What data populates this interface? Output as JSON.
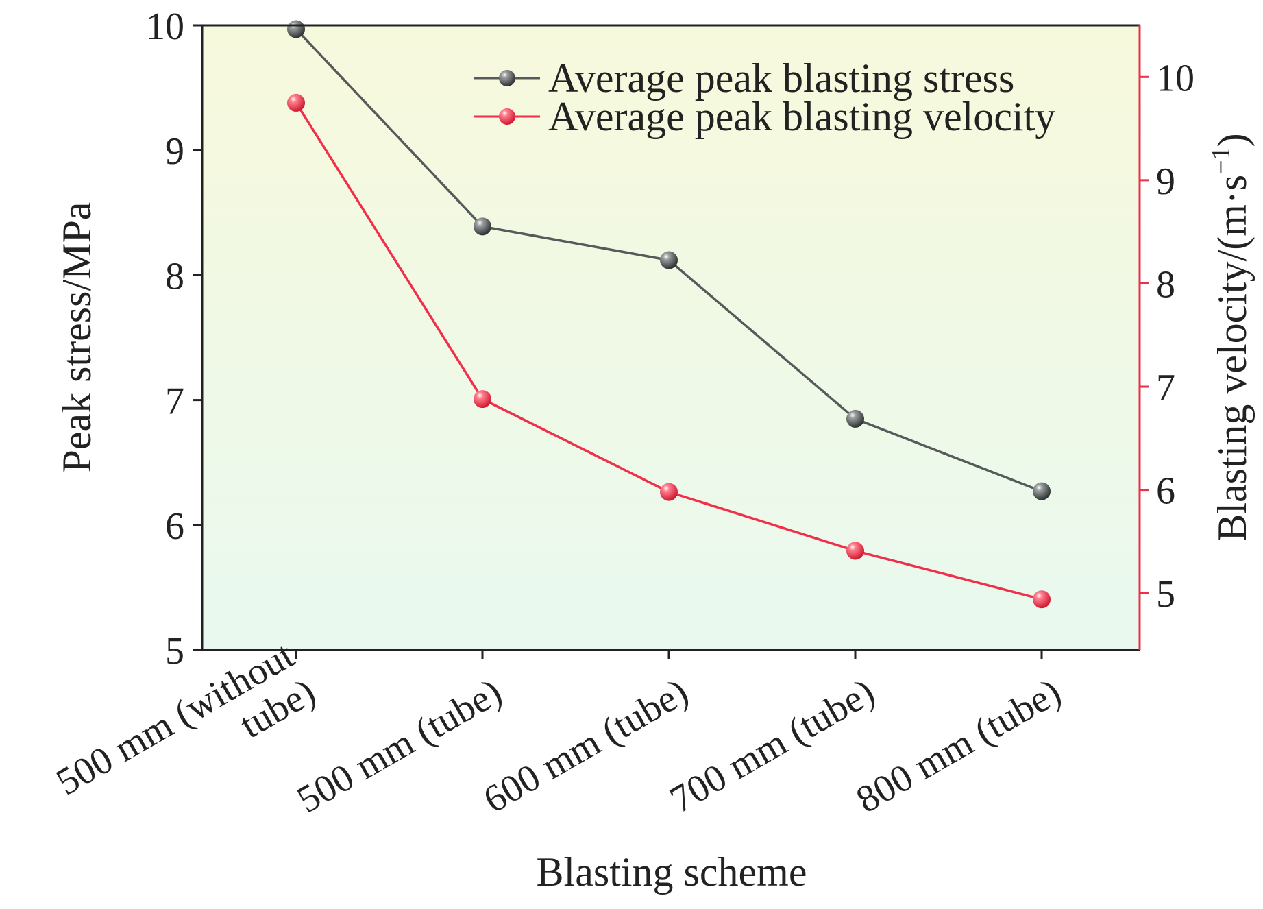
{
  "chart_data": {
    "type": "line",
    "categories": [
      "500 mm (without tube)",
      "500 mm (tube)",
      "600 mm (tube)",
      "700 mm (tube)",
      "800 mm (tube)"
    ],
    "category_label_lines": [
      [
        "500 mm (without",
        "tube)"
      ],
      [
        "500 mm (tube)"
      ],
      [
        "600 mm (tube)"
      ],
      [
        "700 mm (tube)"
      ],
      [
        "800 mm (tube)"
      ]
    ],
    "xlabel": "Blasting scheme",
    "y_left": {
      "label": "Peak stress/MPa",
      "ylim": [
        5,
        10
      ],
      "ticks": [
        5,
        6,
        7,
        8,
        9,
        10
      ]
    },
    "y_right": {
      "label": "Blasting velocity/(m·s⁻¹)",
      "ylim": [
        4.45,
        10.5
      ],
      "ticks": [
        5,
        6,
        7,
        8,
        9,
        10
      ]
    },
    "series": [
      {
        "name": "Average peak blasting stress",
        "axis": "left",
        "color": "#555a5a",
        "values": [
          9.97,
          8.39,
          8.12,
          6.85,
          6.27
        ]
      },
      {
        "name": "Average peak blasting velocity",
        "axis": "right",
        "color": "#f0304a",
        "values": [
          9.75,
          6.88,
          5.98,
          5.41,
          4.94
        ]
      }
    ],
    "legend_position": "top-right",
    "grid": false,
    "colors": {
      "left_axis": "#222222",
      "right_axis": "#e8314a",
      "background_top": "#f7f9dc",
      "background_bottom": "#e9f9ef"
    }
  }
}
